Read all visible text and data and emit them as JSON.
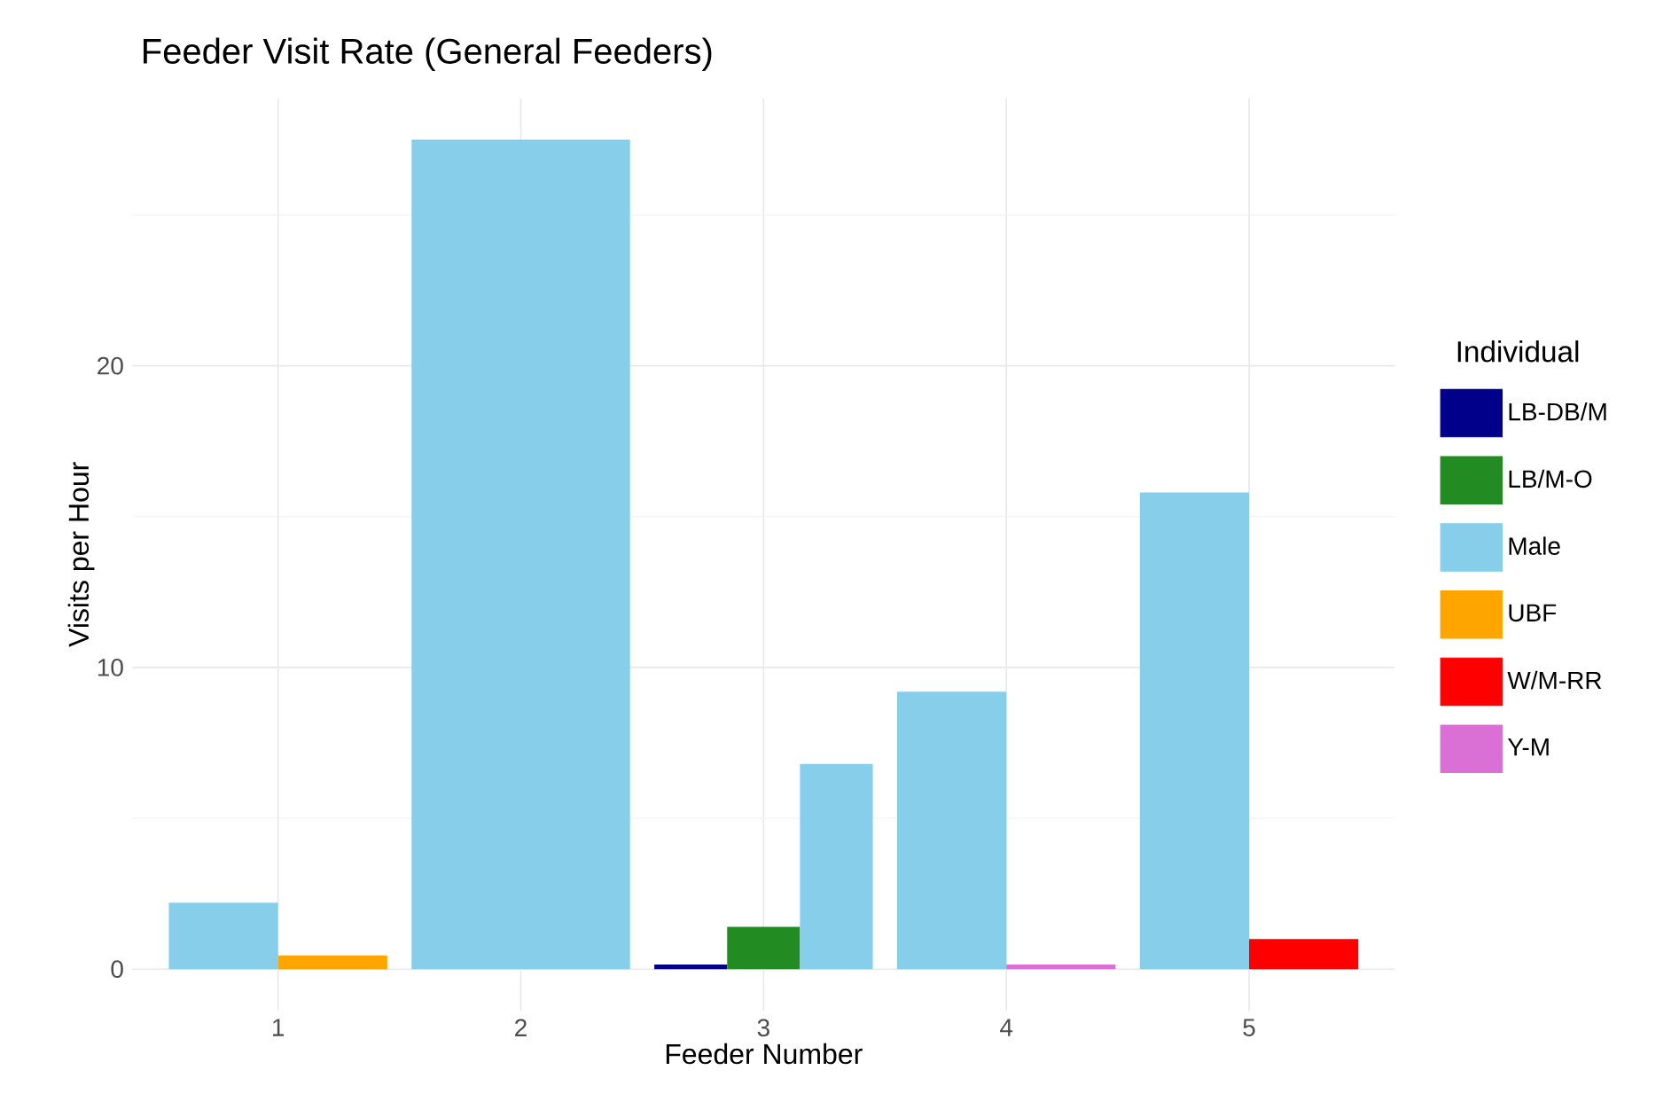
{
  "chart_data": {
    "type": "bar",
    "title": "Feeder Visit Rate (General Feeders)",
    "xlabel": "Feeder Number",
    "ylabel": "Visits per Hour",
    "legend_title": "Individual",
    "categories": [
      "1",
      "2",
      "3",
      "4",
      "5"
    ],
    "series": [
      {
        "name": "LB-DB/M",
        "color": "#00008b",
        "values": [
          null,
          null,
          0.15,
          null,
          null
        ]
      },
      {
        "name": "LB/M-O",
        "color": "#228b22",
        "values": [
          null,
          null,
          1.4,
          null,
          null
        ]
      },
      {
        "name": "Male",
        "color": "#87ceeb",
        "values": [
          2.2,
          27.5,
          6.8,
          9.2,
          15.8
        ]
      },
      {
        "name": "UBF",
        "color": "#ffa500",
        "values": [
          0.45,
          null,
          null,
          null,
          null
        ]
      },
      {
        "name": "W/M-RR",
        "color": "#ff0000",
        "values": [
          null,
          null,
          null,
          null,
          1.0
        ]
      },
      {
        "name": "Y-M",
        "color": "#da70d6",
        "values": [
          null,
          null,
          null,
          0.15,
          null
        ]
      }
    ],
    "ylim": [
      -1.375,
      28.875
    ],
    "yticks": [
      0,
      10,
      20
    ],
    "grid": true,
    "legend": "right"
  }
}
